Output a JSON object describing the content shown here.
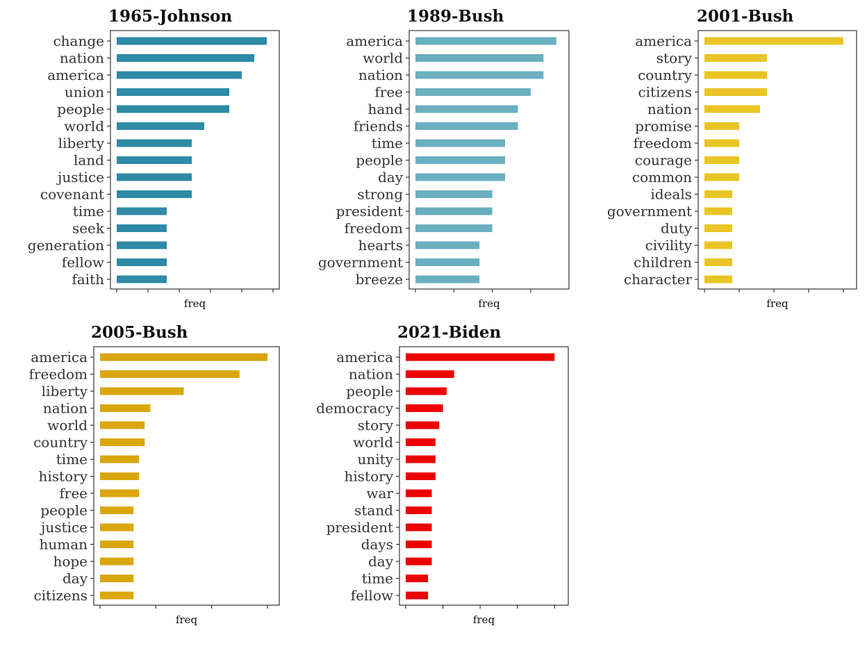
{
  "chart_data": [
    {
      "type": "bar",
      "orientation": "horizontal",
      "title": "1965-Johnson",
      "xlabel": "freq",
      "ylabel": "",
      "color": "#2E8AA6",
      "categories": [
        "change",
        "nation",
        "america",
        "union",
        "people",
        "world",
        "liberty",
        "land",
        "justice",
        "covenant",
        "time",
        "seek",
        "generation",
        "fellow",
        "faith"
      ],
      "values": [
        12,
        11,
        10,
        9,
        9,
        7,
        6,
        6,
        6,
        6,
        4,
        4,
        4,
        4,
        4
      ],
      "xlim": [
        0,
        12.5
      ],
      "xticks": [
        0,
        2.5,
        5,
        7.5,
        10,
        12.5
      ],
      "grid": false
    },
    {
      "type": "bar",
      "orientation": "horizontal",
      "title": "1989-Bush",
      "xlabel": "freq",
      "ylabel": "",
      "color": "#6AAFC0",
      "categories": [
        "america",
        "world",
        "nation",
        "free",
        "hand",
        "friends",
        "time",
        "people",
        "day",
        "strong",
        "president",
        "freedom",
        "hearts",
        "government",
        "breeze"
      ],
      "values": [
        11,
        10,
        10,
        9,
        8,
        8,
        7,
        7,
        7,
        6,
        6,
        6,
        5,
        5,
        5
      ],
      "xlim": [
        0,
        11.5
      ],
      "xticks": [
        0,
        3,
        6,
        9
      ],
      "grid": false
    },
    {
      "type": "bar",
      "orientation": "horizontal",
      "title": "2001-Bush",
      "xlabel": "freq",
      "ylabel": "",
      "color": "#E8C524",
      "categories": [
        "america",
        "story",
        "country",
        "citizens",
        "nation",
        "promise",
        "freedom",
        "courage",
        "common",
        "ideals",
        "government",
        "duty",
        "civility",
        "children",
        "character"
      ],
      "values": [
        8,
        3.6,
        3.6,
        3.6,
        3.2,
        2,
        2,
        2,
        2,
        1.6,
        1.6,
        1.6,
        1.6,
        1.6,
        1.6
      ],
      "xlim": [
        0,
        8.4
      ],
      "xticks": [
        0,
        2,
        4,
        6,
        8
      ],
      "grid": false
    },
    {
      "type": "bar",
      "orientation": "horizontal",
      "title": "2005-Bush",
      "xlabel": "freq",
      "ylabel": "",
      "color": "#D9A60C",
      "categories": [
        "america",
        "freedom",
        "liberty",
        "nation",
        "world",
        "country",
        "time",
        "history",
        "free",
        "people",
        "justice",
        "human",
        "hope",
        "day",
        "citizens"
      ],
      "values": [
        15,
        12.5,
        7.5,
        4.5,
        4,
        4,
        3.5,
        3.5,
        3.5,
        3,
        3,
        3,
        3,
        3,
        3
      ],
      "xlim": [
        0,
        15.5
      ],
      "xticks": [
        0,
        5,
        10,
        15
      ],
      "grid": false
    },
    {
      "type": "bar",
      "orientation": "horizontal",
      "title": "2021-Biden",
      "xlabel": "freq",
      "ylabel": "",
      "color": "#EC0000",
      "categories": [
        "america",
        "nation",
        "people",
        "democracy",
        "story",
        "world",
        "unity",
        "history",
        "war",
        "stand",
        "president",
        "days",
        "day",
        "time",
        "fellow"
      ],
      "values": [
        20,
        6.5,
        5.5,
        5,
        4.5,
        4,
        4,
        4,
        3.5,
        3.5,
        3.5,
        3.5,
        3.5,
        3,
        3
      ],
      "xlim": [
        0,
        21
      ],
      "xticks": [
        0,
        5,
        10,
        15,
        20
      ],
      "grid": false
    }
  ]
}
